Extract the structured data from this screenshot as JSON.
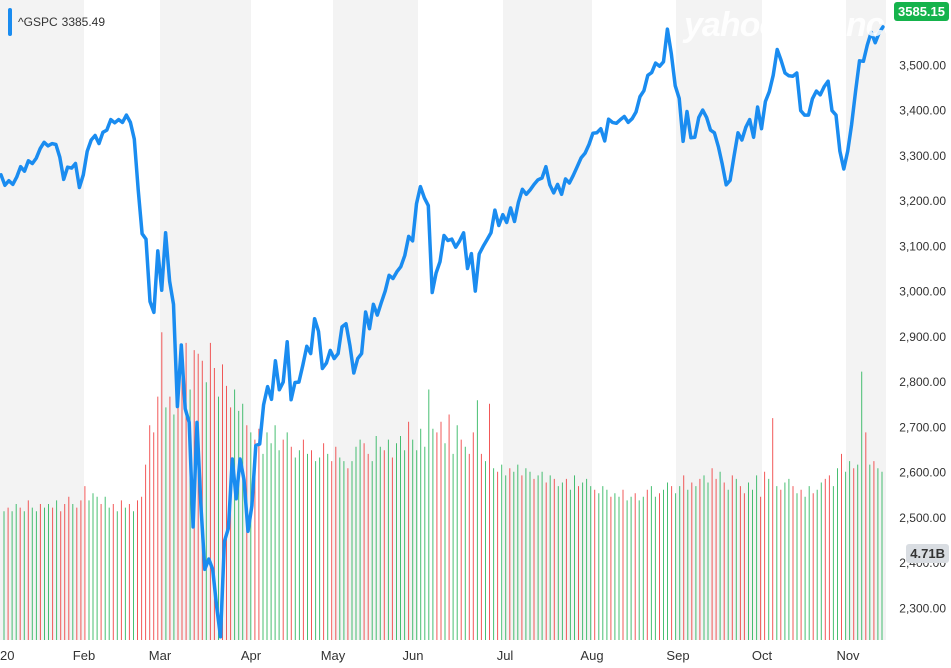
{
  "legend": {
    "symbol": "^GSPC",
    "value": "3385.49"
  },
  "watermark": "yahoo!finance",
  "badges": {
    "last_price": "3585.15",
    "volume": "4.71B"
  },
  "colors": {
    "line": "#1a8cf0",
    "volume_up": "#27b45a",
    "volume_down": "#f03c3c",
    "band": "#f3f3f3",
    "price_badge": "#15b34c"
  },
  "chart_data": {
    "type": "line",
    "ylim": [
      2230,
      3640
    ],
    "y_ticks": [
      "2,300.00",
      "2,400.00",
      "2,500.00",
      "2,600.00",
      "2,700.00",
      "2,800.00",
      "2,900.00",
      "3,000.00",
      "3,100.00",
      "3,200.00",
      "3,300.00",
      "3,400.00",
      "3,500.00"
    ],
    "x_labels": [
      "20",
      "Feb",
      "Mar",
      "Apr",
      "May",
      "Jun",
      "Jul",
      "Aug",
      "Sep",
      "Oct",
      "Nov"
    ],
    "series": [
      {
        "name": "^GSPC",
        "values": [
          3258,
          3235,
          3245,
          3237,
          3253,
          3276,
          3266,
          3289,
          3283,
          3295,
          3316,
          3330,
          3322,
          3327,
          3325,
          3297,
          3248,
          3275,
          3273,
          3283,
          3230,
          3258,
          3310,
          3335,
          3345,
          3327,
          3352,
          3357,
          3380,
          3373,
          3380,
          3374,
          3390,
          3374,
          3337,
          3225,
          3128,
          3116,
          2978,
          2954,
          3090,
          3003,
          3130,
          3023,
          2972,
          2746,
          2882,
          2741,
          2711,
          2480,
          2711,
          2527,
          2386,
          2409,
          2386,
          2305,
          2237,
          2448,
          2477,
          2630,
          2542,
          2630,
          2584,
          2470,
          2527,
          2660,
          2663,
          2750,
          2790,
          2762,
          2847,
          2783,
          2800,
          2889,
          2761,
          2799,
          2800,
          2837,
          2879,
          2863,
          2940,
          2912,
          2830,
          2842,
          2870,
          2852,
          2863,
          2922,
          2929,
          2881,
          2820,
          2852,
          2863,
          2955,
          2918,
          2972,
          2948,
          2975,
          3001,
          3036,
          3029,
          3044,
          3055,
          3080,
          3122,
          3112,
          3194,
          3232,
          3207,
          3190,
          2998,
          3041,
          3066,
          3124,
          3113,
          3116,
          3098,
          3112,
          3130,
          3051,
          3084,
          3001,
          3083,
          3100,
          3115,
          3130,
          3180,
          3146,
          3170,
          3153,
          3185,
          3155,
          3197,
          3226,
          3215,
          3225,
          3237,
          3247,
          3251,
          3276,
          3236,
          3218,
          3237,
          3215,
          3249,
          3240,
          3257,
          3276,
          3296,
          3306,
          3325,
          3350,
          3351,
          3360,
          3333,
          3381,
          3374,
          3372,
          3380,
          3387,
          3374,
          3382,
          3397,
          3431,
          3444,
          3478,
          3484,
          3505,
          3498,
          3508,
          3580,
          3526,
          3455,
          3427,
          3332,
          3398,
          3340,
          3341,
          3385,
          3401,
          3385,
          3357,
          3351,
          3320,
          3281,
          3236,
          3246,
          3299,
          3351,
          3335,
          3363,
          3380,
          3341,
          3408,
          3360,
          3420,
          3442,
          3478,
          3535,
          3511,
          3483,
          3477,
          3476,
          3483,
          3400,
          3390,
          3390,
          3426,
          3443,
          3435,
          3453,
          3465,
          3400,
          3390,
          3310,
          3271,
          3310,
          3369,
          3443,
          3510,
          3509,
          3545,
          3573,
          3550,
          3572,
          3585
        ]
      }
    ],
    "volume": {
      "label": "4.71B",
      "bars": [
        {
          "v": 3.6,
          "up": true
        },
        {
          "v": 3.7,
          "up": false
        },
        {
          "v": 3.6,
          "up": true
        },
        {
          "v": 3.8,
          "up": true
        },
        {
          "v": 3.7,
          "up": false
        },
        {
          "v": 3.6,
          "up": true
        },
        {
          "v": 3.9,
          "up": false
        },
        {
          "v": 3.7,
          "up": true
        },
        {
          "v": 3.6,
          "up": true
        },
        {
          "v": 3.8,
          "up": false
        },
        {
          "v": 3.7,
          "up": true
        },
        {
          "v": 3.8,
          "up": true
        },
        {
          "v": 3.7,
          "up": false
        },
        {
          "v": 3.9,
          "up": true
        },
        {
          "v": 3.6,
          "up": false
        },
        {
          "v": 3.8,
          "up": false
        },
        {
          "v": 4.0,
          "up": false
        },
        {
          "v": 3.8,
          "up": true
        },
        {
          "v": 3.7,
          "up": false
        },
        {
          "v": 3.9,
          "up": false
        },
        {
          "v": 4.3,
          "up": false
        },
        {
          "v": 3.9,
          "up": true
        },
        {
          "v": 4.1,
          "up": true
        },
        {
          "v": 4.0,
          "up": true
        },
        {
          "v": 3.8,
          "up": false
        },
        {
          "v": 4.0,
          "up": true
        },
        {
          "v": 3.7,
          "up": true
        },
        {
          "v": 3.8,
          "up": false
        },
        {
          "v": 3.6,
          "up": true
        },
        {
          "v": 3.9,
          "up": false
        },
        {
          "v": 3.7,
          "up": true
        },
        {
          "v": 3.8,
          "up": false
        },
        {
          "v": 3.6,
          "up": true
        },
        {
          "v": 3.9,
          "up": false
        },
        {
          "v": 4.0,
          "up": false
        },
        {
          "v": 4.9,
          "up": false
        },
        {
          "v": 6.0,
          "up": false
        },
        {
          "v": 5.8,
          "up": false
        },
        {
          "v": 6.8,
          "up": false
        },
        {
          "v": 8.6,
          "up": false
        },
        {
          "v": 6.5,
          "up": true
        },
        {
          "v": 6.8,
          "up": false
        },
        {
          "v": 6.3,
          "up": true
        },
        {
          "v": 7.4,
          "up": false
        },
        {
          "v": 7.5,
          "up": false
        },
        {
          "v": 8.3,
          "up": false
        },
        {
          "v": 7.0,
          "up": true
        },
        {
          "v": 8.1,
          "up": false
        },
        {
          "v": 8.0,
          "up": false
        },
        {
          "v": 7.8,
          "up": false
        },
        {
          "v": 7.2,
          "up": true
        },
        {
          "v": 8.3,
          "up": false
        },
        {
          "v": 7.6,
          "up": false
        },
        {
          "v": 6.8,
          "up": true
        },
        {
          "v": 7.7,
          "up": false
        },
        {
          "v": 7.1,
          "up": false
        },
        {
          "v": 6.5,
          "up": false
        },
        {
          "v": 7.0,
          "up": true
        },
        {
          "v": 6.4,
          "up": true
        },
        {
          "v": 6.6,
          "up": true
        },
        {
          "v": 6.0,
          "up": false
        },
        {
          "v": 5.8,
          "up": true
        },
        {
          "v": 5.6,
          "up": false
        },
        {
          "v": 5.9,
          "up": false
        },
        {
          "v": 5.2,
          "up": true
        },
        {
          "v": 5.8,
          "up": true
        },
        {
          "v": 5.5,
          "up": true
        },
        {
          "v": 6.0,
          "up": true
        },
        {
          "v": 5.3,
          "up": true
        },
        {
          "v": 5.6,
          "up": false
        },
        {
          "v": 5.8,
          "up": true
        },
        {
          "v": 5.4,
          "up": false
        },
        {
          "v": 5.1,
          "up": true
        },
        {
          "v": 5.3,
          "up": true
        },
        {
          "v": 5.6,
          "up": false
        },
        {
          "v": 5.2,
          "up": true
        },
        {
          "v": 5.3,
          "up": false
        },
        {
          "v": 5.0,
          "up": true
        },
        {
          "v": 5.1,
          "up": true
        },
        {
          "v": 5.5,
          "up": false
        },
        {
          "v": 5.2,
          "up": true
        },
        {
          "v": 5.0,
          "up": false
        },
        {
          "v": 5.4,
          "up": false
        },
        {
          "v": 5.1,
          "up": true
        },
        {
          "v": 5.0,
          "up": true
        },
        {
          "v": 4.8,
          "up": false
        },
        {
          "v": 5.0,
          "up": true
        },
        {
          "v": 5.4,
          "up": true
        },
        {
          "v": 5.6,
          "up": true
        },
        {
          "v": 5.5,
          "up": false
        },
        {
          "v": 5.2,
          "up": false
        },
        {
          "v": 5.0,
          "up": true
        },
        {
          "v": 5.7,
          "up": true
        },
        {
          "v": 5.4,
          "up": true
        },
        {
          "v": 5.3,
          "up": false
        },
        {
          "v": 5.6,
          "up": true
        },
        {
          "v": 5.1,
          "up": false
        },
        {
          "v": 5.5,
          "up": true
        },
        {
          "v": 5.7,
          "up": true
        },
        {
          "v": 5.3,
          "up": true
        },
        {
          "v": 6.1,
          "up": false
        },
        {
          "v": 5.6,
          "up": true
        },
        {
          "v": 5.3,
          "up": true
        },
        {
          "v": 5.9,
          "up": true
        },
        {
          "v": 5.4,
          "up": true
        },
        {
          "v": 7.0,
          "up": true
        },
        {
          "v": 5.9,
          "up": true
        },
        {
          "v": 5.8,
          "up": false
        },
        {
          "v": 6.1,
          "up": false
        },
        {
          "v": 5.5,
          "up": true
        },
        {
          "v": 6.3,
          "up": false
        },
        {
          "v": 5.2,
          "up": true
        },
        {
          "v": 6.0,
          "up": true
        },
        {
          "v": 5.6,
          "up": false
        },
        {
          "v": 5.4,
          "up": true
        },
        {
          "v": 5.2,
          "up": false
        },
        {
          "v": 5.8,
          "up": false
        },
        {
          "v": 6.7,
          "up": true
        },
        {
          "v": 5.2,
          "up": false
        },
        {
          "v": 5.0,
          "up": true
        },
        {
          "v": 6.6,
          "up": false
        },
        {
          "v": 4.8,
          "up": true
        },
        {
          "v": 4.7,
          "up": false
        },
        {
          "v": 4.9,
          "up": true
        },
        {
          "v": 4.6,
          "up": true
        },
        {
          "v": 4.8,
          "up": false
        },
        {
          "v": 4.7,
          "up": true
        },
        {
          "v": 4.9,
          "up": true
        },
        {
          "v": 4.6,
          "up": false
        },
        {
          "v": 4.8,
          "up": true
        },
        {
          "v": 4.7,
          "up": true
        },
        {
          "v": 4.5,
          "up": false
        },
        {
          "v": 4.6,
          "up": true
        },
        {
          "v": 4.7,
          "up": true
        },
        {
          "v": 4.4,
          "up": false
        },
        {
          "v": 4.6,
          "up": true
        },
        {
          "v": 4.5,
          "up": false
        },
        {
          "v": 4.3,
          "up": true
        },
        {
          "v": 4.4,
          "up": true
        },
        {
          "v": 4.5,
          "up": false
        },
        {
          "v": 4.2,
          "up": true
        },
        {
          "v": 4.6,
          "up": true
        },
        {
          "v": 4.3,
          "up": false
        },
        {
          "v": 4.4,
          "up": true
        },
        {
          "v": 4.5,
          "up": true
        },
        {
          "v": 4.3,
          "up": true
        },
        {
          "v": 4.2,
          "up": false
        },
        {
          "v": 4.1,
          "up": true
        },
        {
          "v": 4.3,
          "up": true
        },
        {
          "v": 4.2,
          "up": true
        },
        {
          "v": 4.0,
          "up": false
        },
        {
          "v": 4.1,
          "up": true
        },
        {
          "v": 4.0,
          "up": true
        },
        {
          "v": 4.2,
          "up": false
        },
        {
          "v": 3.9,
          "up": true
        },
        {
          "v": 4.0,
          "up": true
        },
        {
          "v": 4.1,
          "up": false
        },
        {
          "v": 3.9,
          "up": true
        },
        {
          "v": 4.0,
          "up": true
        },
        {
          "v": 4.2,
          "up": false
        },
        {
          "v": 4.3,
          "up": true
        },
        {
          "v": 4.0,
          "up": true
        },
        {
          "v": 4.1,
          "up": false
        },
        {
          "v": 4.2,
          "up": true
        },
        {
          "v": 4.4,
          "up": true
        },
        {
          "v": 4.3,
          "up": false
        },
        {
          "v": 4.1,
          "up": true
        },
        {
          "v": 4.3,
          "up": true
        },
        {
          "v": 4.6,
          "up": false
        },
        {
          "v": 4.2,
          "up": true
        },
        {
          "v": 4.4,
          "up": false
        },
        {
          "v": 4.3,
          "up": true
        },
        {
          "v": 4.5,
          "up": false
        },
        {
          "v": 4.6,
          "up": true
        },
        {
          "v": 4.4,
          "up": true
        },
        {
          "v": 4.8,
          "up": false
        },
        {
          "v": 4.5,
          "up": false
        },
        {
          "v": 4.7,
          "up": true
        },
        {
          "v": 4.4,
          "up": false
        },
        {
          "v": 4.2,
          "up": true
        },
        {
          "v": 4.6,
          "up": false
        },
        {
          "v": 4.5,
          "up": true
        },
        {
          "v": 4.3,
          "up": false
        },
        {
          "v": 4.1,
          "up": false
        },
        {
          "v": 4.4,
          "up": true
        },
        {
          "v": 4.2,
          "up": true
        },
        {
          "v": 4.6,
          "up": true
        },
        {
          "v": 4.0,
          "up": false
        },
        {
          "v": 4.7,
          "up": false
        },
        {
          "v": 4.5,
          "up": true
        },
        {
          "v": 6.2,
          "up": false
        },
        {
          "v": 4.3,
          "up": true
        },
        {
          "v": 4.2,
          "up": false
        },
        {
          "v": 4.4,
          "up": true
        },
        {
          "v": 4.5,
          "up": true
        },
        {
          "v": 4.3,
          "up": false
        },
        {
          "v": 4.1,
          "up": true
        },
        {
          "v": 4.2,
          "up": false
        },
        {
          "v": 4.0,
          "up": true
        },
        {
          "v": 4.3,
          "up": true
        },
        {
          "v": 4.1,
          "up": false
        },
        {
          "v": 4.2,
          "up": true
        },
        {
          "v": 4.4,
          "up": true
        },
        {
          "v": 4.5,
          "up": false
        },
        {
          "v": 4.6,
          "up": false
        },
        {
          "v": 4.3,
          "up": true
        },
        {
          "v": 4.8,
          "up": true
        },
        {
          "v": 5.2,
          "up": false
        },
        {
          "v": 4.7,
          "up": true
        },
        {
          "v": 5.0,
          "up": true
        },
        {
          "v": 4.8,
          "up": false
        },
        {
          "v": 4.9,
          "up": true
        },
        {
          "v": 7.5,
          "up": true
        },
        {
          "v": 5.8,
          "up": false
        },
        {
          "v": 4.9,
          "up": true
        },
        {
          "v": 5.0,
          "up": false
        },
        {
          "v": 4.8,
          "up": true
        },
        {
          "v": 4.7,
          "up": true
        }
      ]
    }
  }
}
